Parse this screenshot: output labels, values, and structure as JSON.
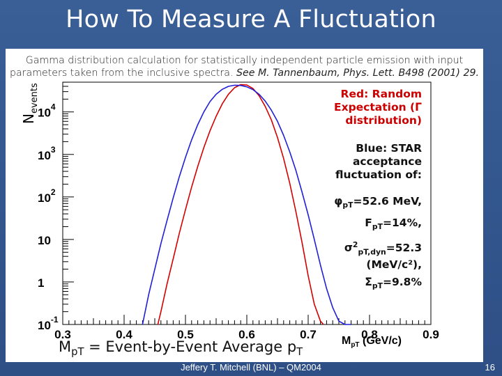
{
  "slide": {
    "title": "How To Measure A Fluctuation",
    "caption_line1": "Gamma distribution calculation for statistically independent particle emission with input",
    "caption_line2a": "parameters taken from the inclusive spectra. ",
    "caption_line2b": "See M. Tannenbaum, Phys. Lett. B498 (2001) 29.",
    "footer": "Jeffery T. Mitchell (BNL) – QM2004",
    "page_number": "16",
    "bottom_label_prefix": "M",
    "bottom_label_sub1": "pT",
    "bottom_label_mid": " = Event-by-Event Average p",
    "bottom_label_sub2": "T"
  },
  "annotations": {
    "red_line1": "Red: Random",
    "red_line2": "Expectation (Γ",
    "red_line3": "distribution)",
    "blue_line1": "Blue: STAR",
    "blue_line2": "acceptance",
    "blue_line3": "fluctuation of:",
    "phi_symbol": "φ",
    "phi_sub": "pT",
    "phi_value": "=52.6 MeV,",
    "f_symbol": "F",
    "f_sub": "pT",
    "f_value": "=14%,",
    "sigma_symbol": "σ",
    "sigma_sup": "2",
    "sigma_sub": "pT,dyn",
    "sigma_value": "=52.3",
    "sigma_unit": "(MeV/c²),",
    "Sigma_symbol": "Σ",
    "Sigma_sub": "pT",
    "Sigma_value": "=9.8%"
  },
  "chart_data": {
    "type": "line",
    "xlabel": "M_pT (GeV/c)",
    "ylabel": "N_events",
    "xlim": [
      0.3,
      0.9
    ],
    "ylim_log10": [
      -1,
      4.7
    ],
    "log_y": true,
    "x_ticks": [
      "0.3",
      "0.4",
      "0.5",
      "0.6",
      "0.7",
      "0.8",
      "0.9"
    ],
    "y_ticks": [
      {
        "base": "10",
        "exp": "-1",
        "value": 0.1
      },
      {
        "base": "1",
        "exp": "",
        "value": 1
      },
      {
        "base": "10",
        "exp": "",
        "value": 10
      },
      {
        "base": "10",
        "exp": "2",
        "value": 100
      },
      {
        "base": "10",
        "exp": "3",
        "value": 1000
      },
      {
        "base": "10",
        "exp": "4",
        "value": 10000
      }
    ],
    "series": [
      {
        "color": "#d40000",
        "x": [
          0.455,
          0.46,
          0.47,
          0.48,
          0.49,
          0.5,
          0.51,
          0.52,
          0.53,
          0.54,
          0.55,
          0.56,
          0.57,
          0.58,
          0.59,
          0.6,
          0.61,
          0.62,
          0.63,
          0.64,
          0.65,
          0.66,
          0.67,
          0.68,
          0.69,
          0.7,
          0.71,
          0.72,
          0.725
        ],
        "y": [
          0.1,
          0.2,
          0.9,
          3.5,
          14,
          50,
          170,
          520,
          1450,
          3600,
          7900,
          15500,
          26000,
          37000,
          44000,
          43000,
          35500,
          24000,
          13500,
          6500,
          2500,
          800,
          210,
          45,
          8.5,
          1.4,
          0.3,
          0.12,
          0.1
        ]
      },
      {
        "color": "#1f1fd6",
        "x": [
          0.43,
          0.44,
          0.45,
          0.46,
          0.47,
          0.48,
          0.49,
          0.5,
          0.51,
          0.52,
          0.53,
          0.54,
          0.55,
          0.56,
          0.57,
          0.58,
          0.59,
          0.6,
          0.61,
          0.62,
          0.63,
          0.64,
          0.65,
          0.66,
          0.67,
          0.68,
          0.69,
          0.7,
          0.71,
          0.72,
          0.73,
          0.74,
          0.75,
          0.76,
          0.77
        ],
        "y": [
          0.1,
          0.5,
          2,
          8,
          28,
          95,
          300,
          850,
          2200,
          5000,
          10000,
          17500,
          26000,
          34000,
          40000,
          42500,
          42000,
          39000,
          33500,
          26000,
          18000,
          11000,
          6000,
          2800,
          1150,
          420,
          130,
          38,
          10,
          2.5,
          0.7,
          0.25,
          0.12,
          0.1,
          0.1
        ]
      }
    ]
  }
}
